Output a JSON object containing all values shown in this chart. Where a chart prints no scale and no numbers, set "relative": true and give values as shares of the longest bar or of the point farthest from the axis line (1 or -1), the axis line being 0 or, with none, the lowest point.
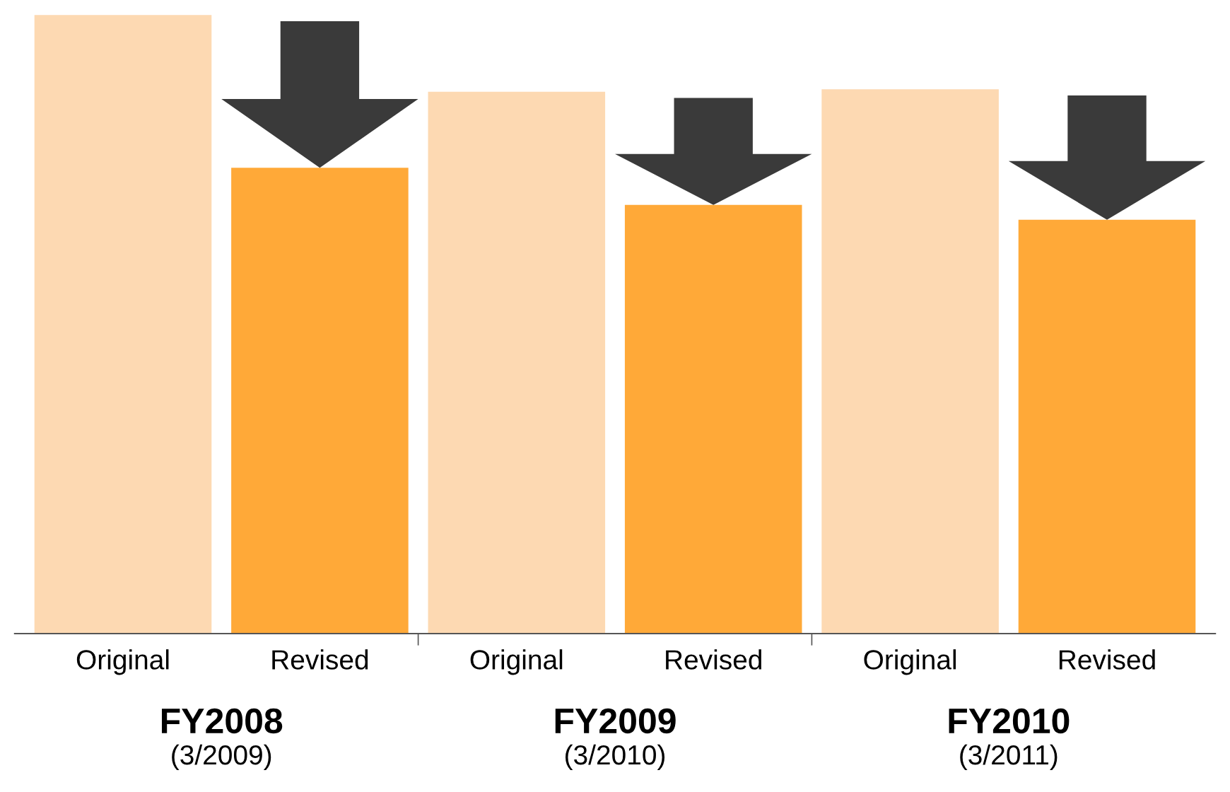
{
  "chart_data": {
    "type": "bar",
    "relative": true,
    "categories": [
      "Original",
      "Revised",
      "Original",
      "Revised",
      "Original",
      "Revised"
    ],
    "values": [
      1,
      0.753,
      0.876,
      0.693,
      0.88,
      0.669
    ],
    "colors": [
      "#fdd9b2",
      "#ffa938",
      "#fdd9b2",
      "#ffa938",
      "#fdd9b2",
      "#ffa938"
    ],
    "annotations": [
      "FY2008",
      "(3/2009)",
      "FY2009",
      "(3/2010)",
      "FY2010",
      "(3/2011)"
    ],
    "grid": false,
    "legend": false
  }
}
